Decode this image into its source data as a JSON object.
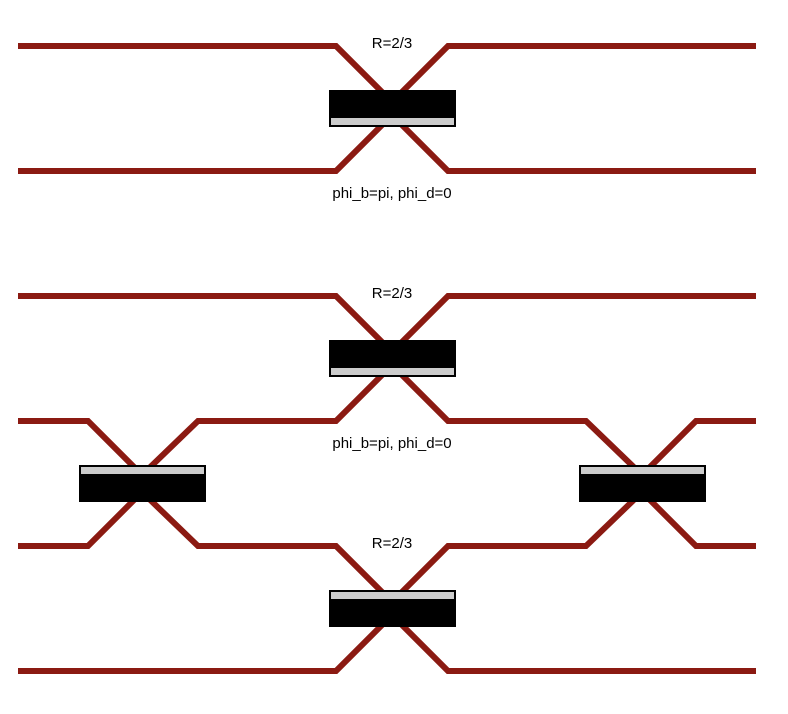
{
  "colors": {
    "waveguide": "#8b1a12",
    "splitter_body": "#000000",
    "splitter_coating": "#cccccc",
    "background": "#ffffff"
  },
  "diagram_top": {
    "splitter": {
      "label_above": "R=2/3",
      "label_below": "phi_b=pi, phi_d=0"
    }
  },
  "diagram_bottom": {
    "splitter_top": {
      "label_above": "R=2/3",
      "label_below": "phi_b=pi, phi_d=0"
    },
    "splitter_left": {},
    "splitter_right": {},
    "splitter_bottom": {
      "label_above": "R=2/3"
    }
  }
}
